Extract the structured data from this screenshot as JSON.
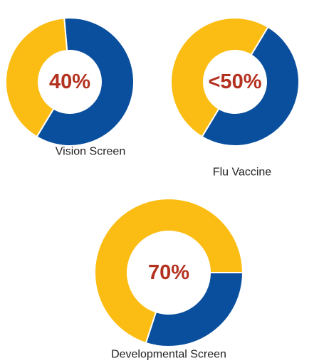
{
  "chart_data": [
    {
      "type": "donut",
      "title": "Vision Screen",
      "values": [
        40,
        60
      ],
      "value_labels": [
        "40%",
        null
      ],
      "colors": [
        "#fbbd13",
        "#094f9d"
      ]
    },
    {
      "type": "donut",
      "title": "Flu Vaccine",
      "values": [
        50,
        50
      ],
      "value_labels": [
        "<50%",
        null
      ],
      "colors": [
        "#fbbd13",
        "#094f9d"
      ]
    },
    {
      "type": "donut",
      "title": "Developmental Screen",
      "values": [
        70,
        30
      ],
      "value_labels": [
        "70%",
        null
      ],
      "colors": [
        "#fbbd13",
        "#094f9d"
      ]
    }
  ]
}
